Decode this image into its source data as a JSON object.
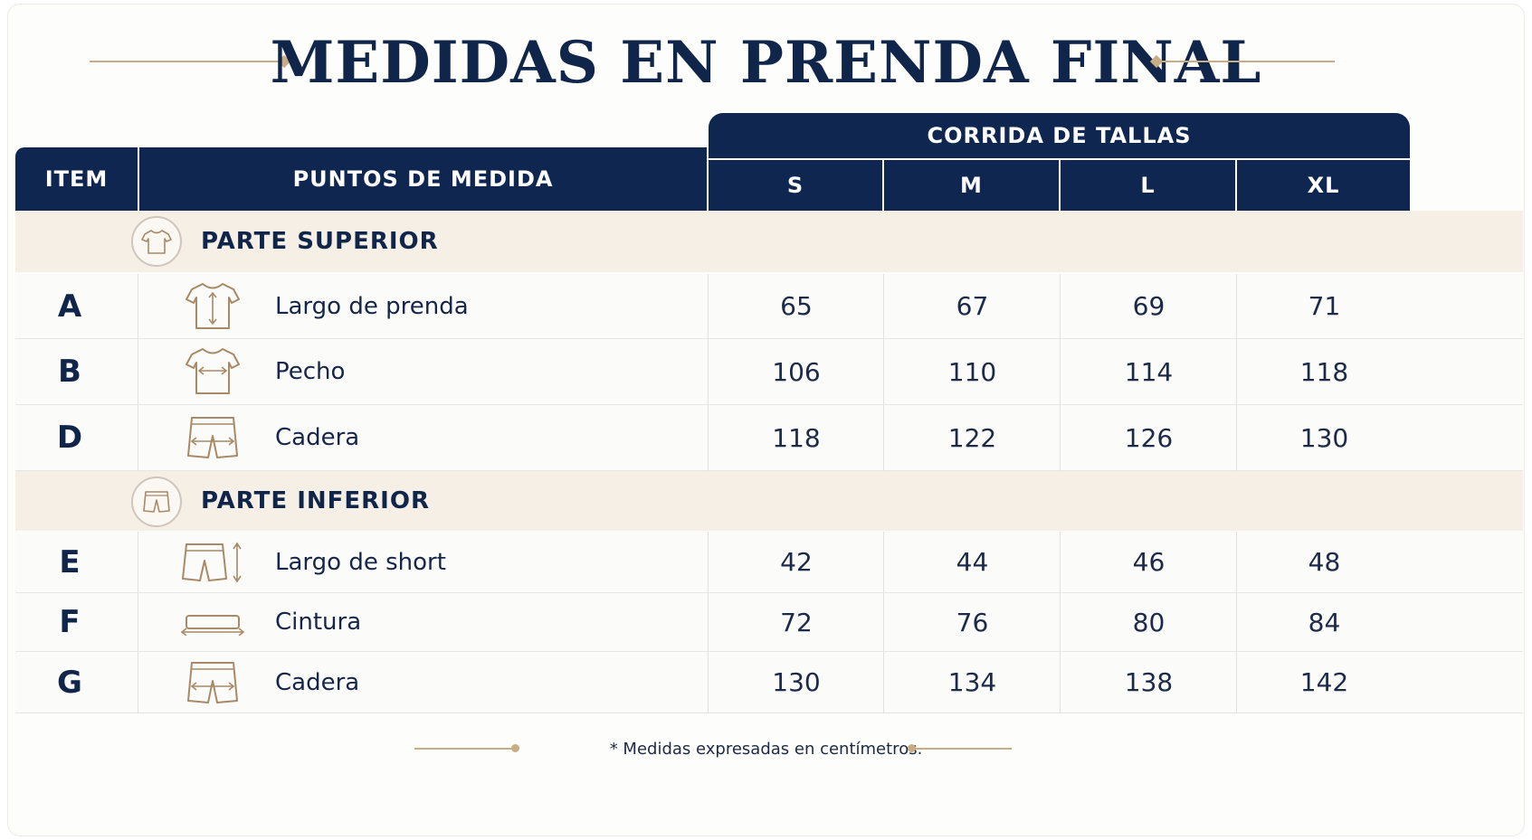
{
  "title": "MEDIDAS EN PRENDA FINAL",
  "header": {
    "item": "ITEM",
    "points": "PUNTOS DE MEDIDA",
    "sizes_group": "CORRIDA DE TALLAS",
    "sizes": [
      "S",
      "M",
      "L",
      "XL"
    ]
  },
  "sections": [
    {
      "title": "PARTE SUPERIOR",
      "icon": "tshirt-icon",
      "rows": [
        {
          "item": "A",
          "icon": "tshirt-length-icon",
          "label": "Largo de prenda",
          "values": [
            "65",
            "67",
            "69",
            "71"
          ]
        },
        {
          "item": "B",
          "icon": "tshirt-chest-icon",
          "label": "Pecho",
          "values": [
            "106",
            "110",
            "114",
            "118"
          ]
        },
        {
          "item": "D",
          "icon": "shorts-hip-icon",
          "label": "Cadera",
          "values": [
            "118",
            "122",
            "126",
            "130"
          ]
        }
      ]
    },
    {
      "title": "PARTE INFERIOR",
      "icon": "shorts-icon",
      "rows": [
        {
          "item": "E",
          "icon": "shorts-length-icon",
          "label": "Largo de short",
          "values": [
            "42",
            "44",
            "46",
            "48"
          ]
        },
        {
          "item": "F",
          "icon": "waistband-icon",
          "label": "Cintura",
          "values": [
            "72",
            "76",
            "80",
            "84"
          ]
        },
        {
          "item": "G",
          "icon": "shorts-hip-icon",
          "label": "Cadera",
          "values": [
            "130",
            "134",
            "138",
            "142"
          ]
        }
      ]
    }
  ],
  "footer": "* Medidas expresadas en centímetros.",
  "colors": {
    "navy": "#0f2650",
    "gold": "#c9ab84",
    "section_bg": "#f5efe6"
  }
}
